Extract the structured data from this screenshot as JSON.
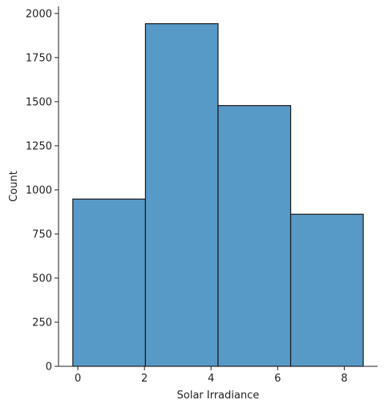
{
  "chart_data": {
    "type": "bar",
    "title": "",
    "xlabel": "Solar Irradiance",
    "ylabel": "Count",
    "bins": [
      {
        "x0": -0.15,
        "x1": 2.03,
        "count": 948
      },
      {
        "x0": 2.03,
        "x1": 4.21,
        "count": 1942
      },
      {
        "x0": 4.21,
        "x1": 6.39,
        "count": 1478
      },
      {
        "x0": 6.39,
        "x1": 8.57,
        "count": 862
      }
    ],
    "xlim": [
      -0.58,
      9.0
    ],
    "ylim": [
      0,
      2040
    ],
    "xticks": [
      0,
      2,
      4,
      6,
      8
    ],
    "yticks": [
      0,
      250,
      500,
      750,
      1000,
      1250,
      1500,
      1750,
      2000
    ],
    "grid": false,
    "bar_color": "#5799c7",
    "edge_color": "#1a1a1a"
  }
}
